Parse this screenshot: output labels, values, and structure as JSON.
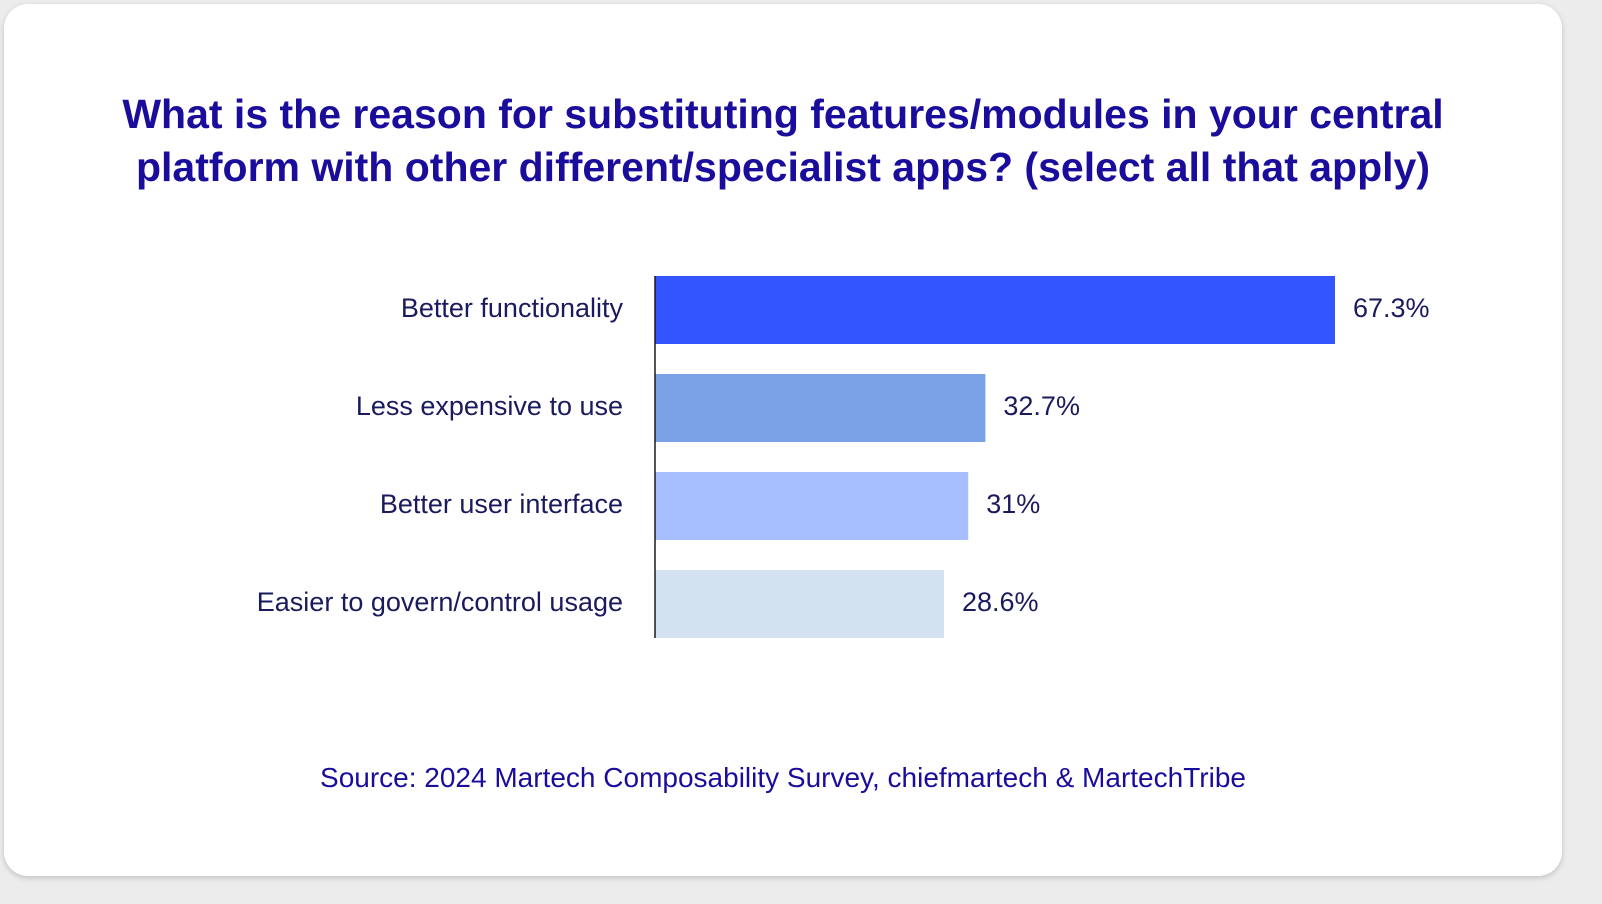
{
  "chart_data": {
    "type": "bar",
    "orientation": "horizontal",
    "title_lines": [
      "What is the reason for substituting features/modules in your central",
      "platform with other different/specialist apps? (select all that apply)"
    ],
    "categories": [
      "Better functionality",
      "Less expensive to use",
      "Better user interface",
      "Easier to govern/control usage"
    ],
    "values": [
      67.3,
      32.7,
      31,
      28.6
    ],
    "value_labels": [
      "67.3%",
      "32.7%",
      "31%",
      "28.6%"
    ],
    "colors": [
      "#3355ff",
      "#7ba1e6",
      "#a8bfff",
      "#d3e2f0"
    ],
    "xlim": [
      0,
      67.3
    ],
    "grid": false,
    "legend": "none"
  },
  "source": "Source: 2024 Martech Composability Survey, chiefmartech & MartechTribe"
}
